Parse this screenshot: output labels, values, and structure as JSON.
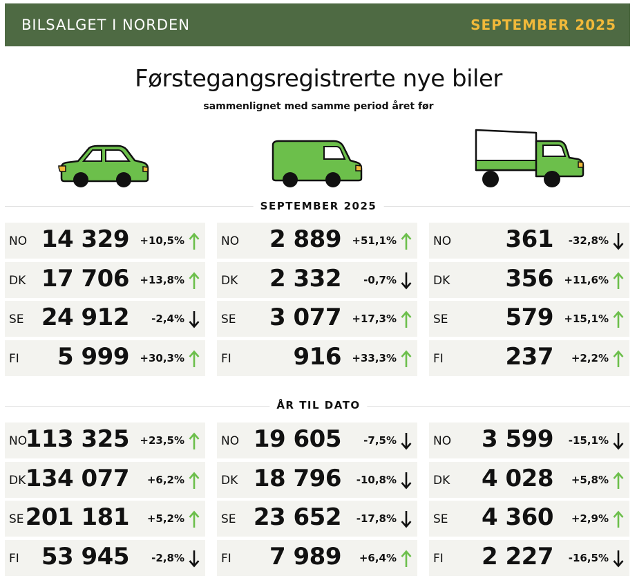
{
  "header": {
    "brand": "BILSALGET I NORDEN",
    "month": "SEPTEMBER 2025",
    "bg_color": "#4e6a43",
    "month_color": "#f1b93a"
  },
  "title": "Førstegangsregistrerte nye biler",
  "subtitle": "sammenlignet med samme period året før",
  "vehicles": [
    "car-icon",
    "van-icon",
    "truck-icon"
  ],
  "colors": {
    "vehicle_green": "#6cbf4b",
    "up_arrow": "#6cbf4b",
    "down_arrow": "#111111"
  },
  "sections": [
    {
      "label": "SEPTEMBER 2025",
      "columns": [
        [
          {
            "code": "NO",
            "value": "14 329",
            "change": "+10,5%",
            "dir": "up"
          },
          {
            "code": "DK",
            "value": "17 706",
            "change": "+13,8%",
            "dir": "up"
          },
          {
            "code": "SE",
            "value": "24 912",
            "change": "-2,4%",
            "dir": "down"
          },
          {
            "code": "FI",
            "value": "5 999",
            "change": "+30,3%",
            "dir": "up"
          }
        ],
        [
          {
            "code": "NO",
            "value": "2 889",
            "change": "+51,1%",
            "dir": "up"
          },
          {
            "code": "DK",
            "value": "2 332",
            "change": "-0,7%",
            "dir": "down"
          },
          {
            "code": "SE",
            "value": "3 077",
            "change": "+17,3%",
            "dir": "up"
          },
          {
            "code": "FI",
            "value": "916",
            "change": "+33,3%",
            "dir": "up"
          }
        ],
        [
          {
            "code": "NO",
            "value": "361",
            "change": "-32,8%",
            "dir": "down"
          },
          {
            "code": "DK",
            "value": "356",
            "change": "+11,6%",
            "dir": "up"
          },
          {
            "code": "SE",
            "value": "579",
            "change": "+15,1%",
            "dir": "up"
          },
          {
            "code": "FI",
            "value": "237",
            "change": "+2,2%",
            "dir": "up"
          }
        ]
      ]
    },
    {
      "label": "ÅR TIL DATO",
      "columns": [
        [
          {
            "code": "NO",
            "value": "113 325",
            "change": "+23,5%",
            "dir": "up"
          },
          {
            "code": "DK",
            "value": "134 077",
            "change": "+6,2%",
            "dir": "up"
          },
          {
            "code": "SE",
            "value": "201 181",
            "change": "+5,2%",
            "dir": "up"
          },
          {
            "code": "FI",
            "value": "53 945",
            "change": "-2,8%",
            "dir": "down"
          }
        ],
        [
          {
            "code": "NO",
            "value": "19 605",
            "change": "-7,5%",
            "dir": "down"
          },
          {
            "code": "DK",
            "value": "18 796",
            "change": "-10,8%",
            "dir": "down"
          },
          {
            "code": "SE",
            "value": "23 652",
            "change": "-17,8%",
            "dir": "down"
          },
          {
            "code": "FI",
            "value": "7 989",
            "change": "+6,4%",
            "dir": "up"
          }
        ],
        [
          {
            "code": "NO",
            "value": "3 599",
            "change": "-15,1%",
            "dir": "down"
          },
          {
            "code": "DK",
            "value": "4 028",
            "change": "+5,8%",
            "dir": "up"
          },
          {
            "code": "SE",
            "value": "4 360",
            "change": "+2,9%",
            "dir": "up"
          },
          {
            "code": "FI",
            "value": "2 227",
            "change": "-16,5%",
            "dir": "down"
          }
        ]
      ]
    }
  ]
}
